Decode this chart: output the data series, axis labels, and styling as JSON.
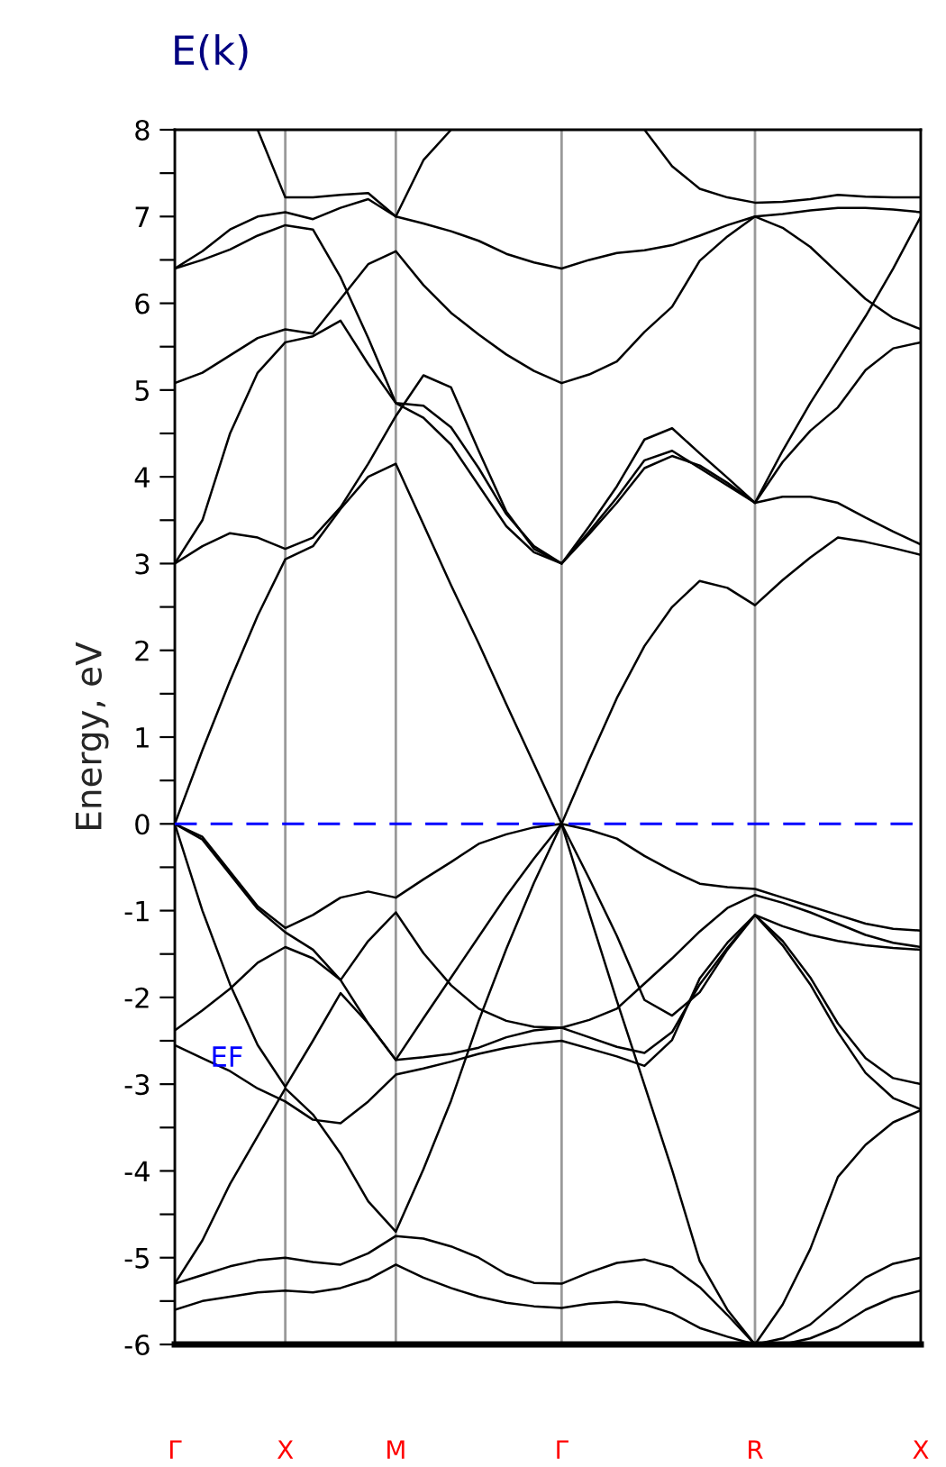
{
  "chart_data": {
    "type": "line",
    "title": "E(k)",
    "ylabel": "Energy, eV",
    "categories": [
      "Γ",
      null,
      null,
      null,
      "X",
      null,
      null,
      null,
      "M",
      null,
      null,
      null,
      null,
      null,
      "Γ",
      null,
      null,
      null,
      null,
      null,
      null,
      "R",
      null,
      null,
      null,
      null,
      null,
      "X"
    ],
    "series": [
      {
        "color": "#000000",
        "values": [
          0,
          0.85,
          1.65,
          2.4,
          3.05,
          3.2,
          3.63,
          4.0,
          4.15,
          3.45,
          2.75,
          2.08,
          1.38,
          0.69,
          0,
          0.74,
          1.45,
          2.05,
          2.5,
          2.8,
          2.72,
          2.52,
          2.81,
          3.07,
          3.3,
          3.25,
          3.18,
          3.1
        ]
      },
      {
        "color": "#000000",
        "values": [
          3.0,
          3.2,
          3.35,
          3.3,
          3.17,
          3.3,
          3.65,
          4.15,
          4.7,
          5.17,
          5.03,
          4.3,
          3.6,
          3.17,
          3.0,
          3.43,
          3.89,
          4.43,
          4.56,
          4.27,
          3.99,
          3.7,
          3.77,
          3.77,
          3.7,
          3.53,
          3.37,
          3.22
        ]
      },
      {
        "color": "#000000",
        "values": [
          3.0,
          3.5,
          4.5,
          5.2,
          5.55,
          5.62,
          5.8,
          5.3,
          4.85,
          4.68,
          4.37,
          3.9,
          3.43,
          3.13,
          3.0,
          3.34,
          3.7,
          4.1,
          4.24,
          4.13,
          3.93,
          3.7,
          4.17,
          4.53,
          4.8,
          5.23,
          5.48,
          5.55
        ]
      },
      {
        "color": "#000000",
        "values": [
          5.08,
          5.2,
          5.4,
          5.6,
          5.7,
          5.65,
          6.05,
          6.45,
          6.6,
          6.21,
          5.89,
          5.64,
          5.41,
          5.22,
          5.08,
          5.18,
          5.33,
          5.67,
          5.96,
          6.49,
          6.77,
          7.0,
          7.03,
          7.07,
          7.1,
          7.1,
          7.08,
          7.05
        ]
      },
      {
        "color": "#000000",
        "values": [
          6.4,
          6.5,
          6.62,
          6.78,
          6.9,
          6.85,
          6.3,
          5.6,
          4.85,
          4.82,
          4.57,
          4.1,
          3.57,
          3.2,
          3.0,
          3.37,
          3.76,
          4.19,
          4.3,
          4.1,
          3.9,
          3.7,
          4.3,
          4.85,
          5.35,
          5.85,
          6.4,
          7.0
        ]
      },
      {
        "color": "#000000",
        "values": [
          6.4,
          6.6,
          6.85,
          7.0,
          7.05,
          6.97,
          7.1,
          7.2,
          7.0,
          6.92,
          6.83,
          6.72,
          6.57,
          6.47,
          6.4,
          6.5,
          6.58,
          6.61,
          6.67,
          6.78,
          6.9,
          7.0,
          6.87,
          6.65,
          6.35,
          6.05,
          5.83,
          5.7
        ]
      },
      {
        "color": "#000000",
        "values": [
          null,
          null,
          null,
          8.0,
          7.22,
          7.22,
          7.25,
          7.27,
          7.0,
          7.65,
          8.0,
          null,
          null,
          null,
          null,
          null,
          null,
          8.0,
          7.58,
          7.32,
          7.22,
          7.16,
          7.17,
          7.2,
          7.25,
          7.23,
          7.22,
          7.22
        ]
      },
      {
        "color": "#000000",
        "values": [
          0,
          -0.15,
          -0.55,
          -0.95,
          -1.2,
          -1.05,
          -0.85,
          -0.78,
          -0.85,
          -0.64,
          -0.44,
          -0.23,
          -0.12,
          -0.04,
          0,
          -0.07,
          -0.17,
          -0.37,
          -0.54,
          -0.69,
          -0.73,
          -0.75,
          -0.85,
          -0.95,
          -1.05,
          -1.15,
          -1.21,
          -1.23
        ]
      },
      {
        "color": "#000000",
        "values": [
          0,
          -1.0,
          -1.85,
          -2.55,
          -3.03,
          -2.5,
          -1.95,
          -2.3,
          -2.72,
          -2.69,
          -2.65,
          -2.58,
          -2.46,
          -2.38,
          -2.35,
          -2.46,
          -2.57,
          -2.64,
          -2.4,
          -1.85,
          -1.43,
          -1.05,
          -1.35,
          -1.77,
          -2.3,
          -2.7,
          -2.93,
          -3.0
        ]
      },
      {
        "color": "#000000",
        "values": [
          -2.38,
          -2.15,
          -1.9,
          -1.6,
          -1.42,
          -1.55,
          -1.8,
          -1.35,
          -1.02,
          -1.49,
          -1.86,
          -2.13,
          -2.27,
          -2.34,
          -2.35,
          -2.26,
          -2.13,
          -1.84,
          -1.55,
          -1.24,
          -0.97,
          -0.82,
          -0.91,
          -1.02,
          -1.15,
          -1.28,
          -1.37,
          -1.42
        ]
      },
      {
        "color": "#000000",
        "values": [
          -2.55,
          -2.7,
          -2.85,
          -3.05,
          -3.2,
          -3.41,
          -3.45,
          -3.2,
          -2.89,
          -2.82,
          -2.74,
          -2.65,
          -2.58,
          -2.53,
          -2.5,
          -2.59,
          -2.68,
          -2.79,
          -2.49,
          -1.78,
          -1.37,
          -1.05,
          -1.4,
          -1.85,
          -2.4,
          -2.87,
          -3.16,
          -3.29
        ]
      },
      {
        "color": "#000000",
        "values": [
          -5.3,
          -4.8,
          -4.15,
          -3.6,
          -3.05,
          -3.35,
          -3.8,
          -4.35,
          -4.7,
          -3.98,
          -3.19,
          -2.27,
          -1.44,
          -0.68,
          0,
          -1.03,
          -2.04,
          -3.01,
          -3.99,
          -5.04,
          -5.6,
          -6.0,
          -5.54,
          -4.9,
          -4.07,
          -3.7,
          -3.44,
          -3.3
        ]
      },
      {
        "color": "#000000",
        "values": [
          -5.3,
          -5.2,
          -5.1,
          -5.03,
          -5.0,
          -5.05,
          -5.08,
          -4.95,
          -4.75,
          -4.78,
          -4.87,
          -5.0,
          -5.19,
          -5.29,
          -5.3,
          -5.17,
          -5.06,
          -5.02,
          -5.11,
          -5.34,
          -5.66,
          -6.0,
          -5.93,
          -5.77,
          -5.5,
          -5.23,
          -5.07,
          -5.0
        ]
      },
      {
        "color": "#000000",
        "values": [
          -5.6,
          -5.5,
          -5.45,
          -5.4,
          -5.38,
          -5.4,
          -5.35,
          -5.25,
          -5.08,
          -5.23,
          -5.35,
          -5.45,
          -5.52,
          -5.56,
          -5.58,
          -5.53,
          -5.51,
          -5.54,
          -5.64,
          -5.81,
          -5.91,
          -6.0,
          -6.0,
          -5.93,
          -5.8,
          -5.6,
          -5.46,
          -5.38
        ]
      },
      {
        "color": "#000000",
        "values": [
          0,
          -0.18,
          -0.58,
          -0.98,
          -1.25,
          -1.45,
          -1.8,
          -2.3,
          -2.72,
          -2.24,
          -1.77,
          -1.3,
          -0.83,
          -0.4,
          0,
          -0.63,
          -1.29,
          -2.03,
          -2.21,
          -1.94,
          -1.45,
          -1.05,
          -1.18,
          -1.28,
          -1.35,
          -1.4,
          -1.43,
          -1.45
        ]
      }
    ],
    "ylim": [
      -6,
      8
    ],
    "yticks": [
      -6,
      {
        "value": -5.5,
        "label": null
      },
      -5,
      {
        "value": -4.5,
        "label": null
      },
      -4,
      {
        "value": -3.5,
        "label": null
      },
      -3,
      {
        "value": -2.5,
        "label": null
      },
      -2,
      {
        "value": -1.5,
        "label": null
      },
      -1,
      {
        "value": -0.5,
        "label": null
      },
      0,
      {
        "value": 0.5,
        "label": null
      },
      1,
      {
        "value": 1.5,
        "label": null
      },
      2,
      {
        "value": 2.5,
        "label": null
      },
      3,
      {
        "value": 3.5,
        "label": null
      },
      4,
      {
        "value": 4.5,
        "label": null
      },
      5,
      {
        "value": 5.5,
        "label": null
      },
      6,
      {
        "value": 6.5,
        "label": null
      },
      7,
      {
        "value": 7.5,
        "label": null
      },
      8
    ],
    "grid": "x",
    "ref_lines": [
      {
        "axis": "y",
        "value": 0,
        "color": "#0000ff",
        "line_style": "dashed"
      }
    ],
    "annotations": [
      "EF"
    ]
  }
}
